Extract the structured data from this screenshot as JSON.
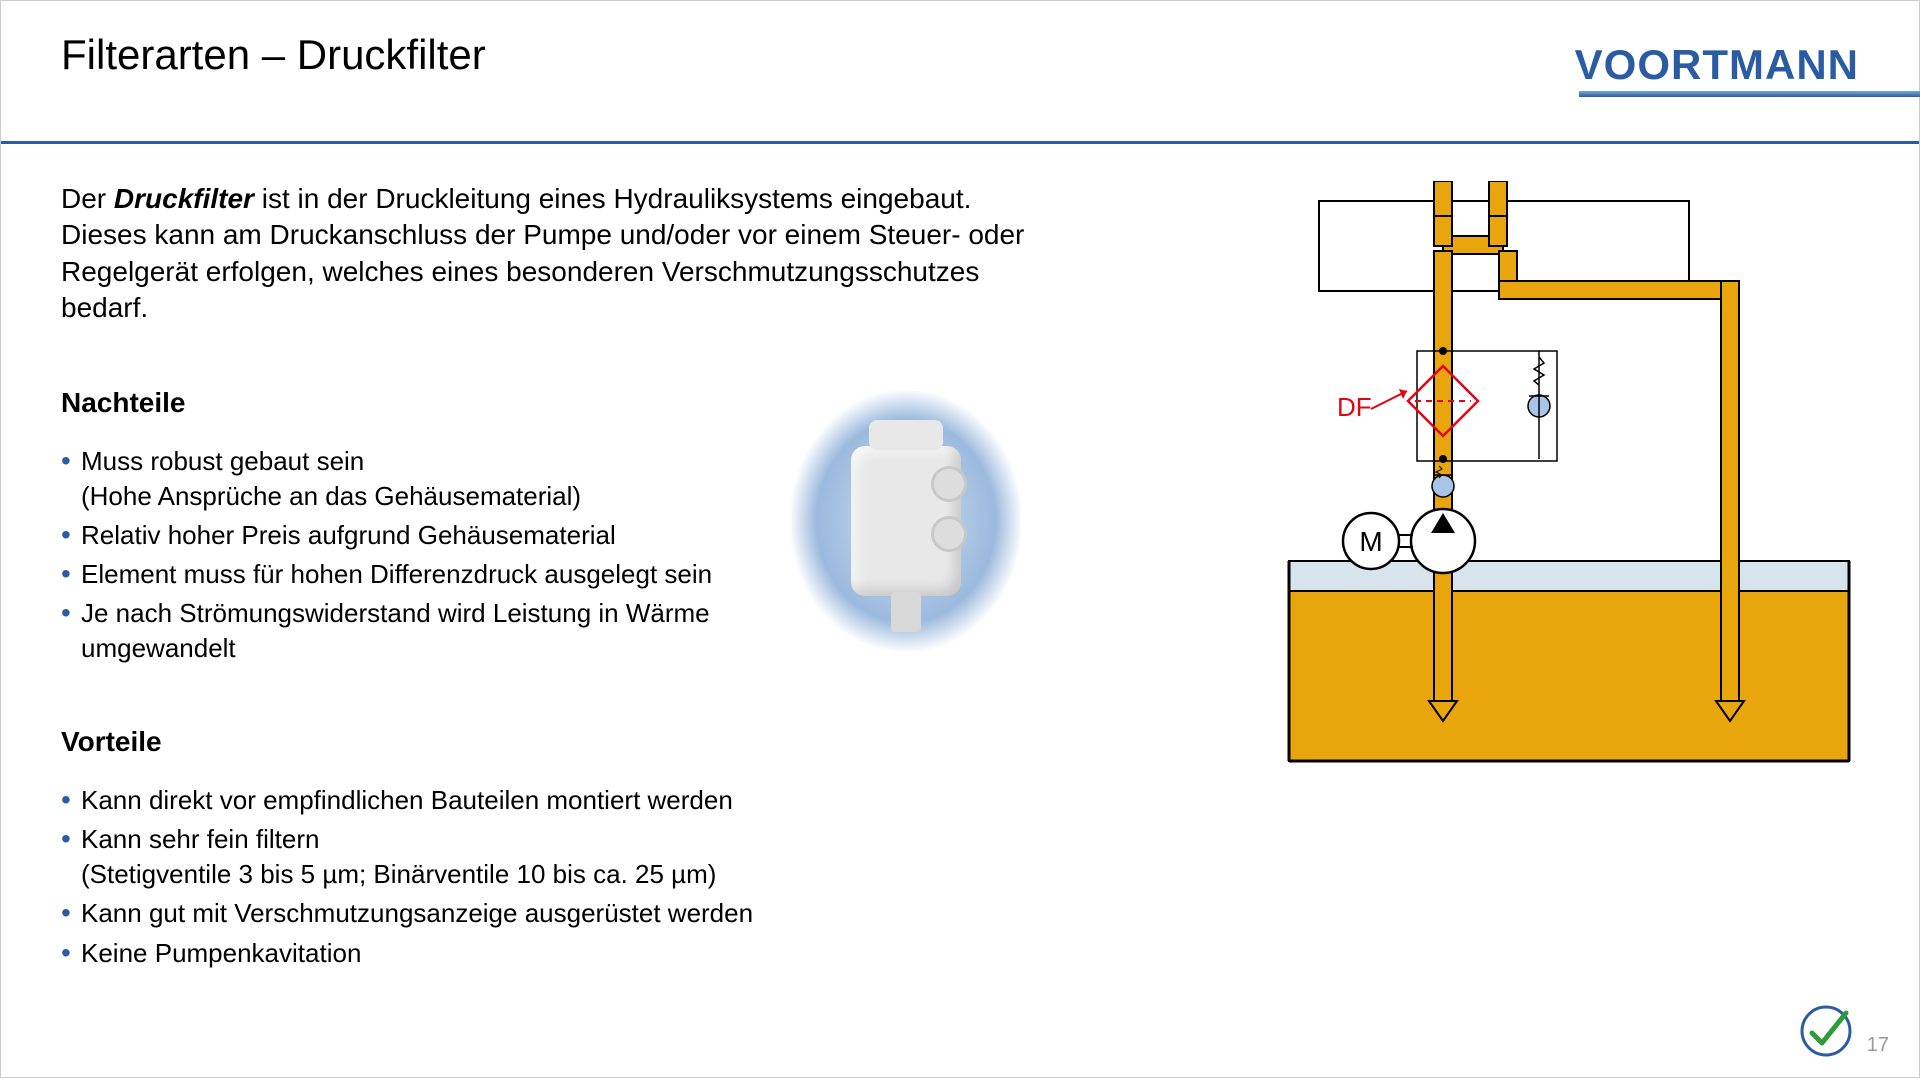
{
  "title": "Filterarten – Druckfilter",
  "logo": "VOORTMANN",
  "intro_prefix": "Der ",
  "intro_bold": "Druckfilter",
  "intro_rest": " ist in der Druckleitung eines Hydrauliksystems eingebaut. Dieses kann am Druckanschluss der Pumpe und/oder vor einem Steuer- oder Regelgerät erfolgen, welches eines besonderen Verschmutzungsschutzes bedarf.",
  "nachteile_heading": "Nachteile",
  "nachteile": [
    {
      "text": "Muss robust gebaut sein",
      "sub": "(Hohe Ansprüche an das Gehäusematerial)"
    },
    {
      "text": "Relativ hoher Preis aufgrund Gehäusematerial"
    },
    {
      "text": "Element muss für hohen Differenzdruck ausgelegt sein"
    },
    {
      "text": "Je nach Strömungswiderstand wird Leistung in Wärme umgewandelt"
    }
  ],
  "vorteile_heading": "Vorteile",
  "vorteile": [
    {
      "text": "Kann direkt vor empfindlichen Bauteilen montiert werden"
    },
    {
      "text": "Kann sehr fein filtern",
      "sub": "(Stetigventile 3 bis 5 µm; Binärventile 10 bis ca. 25 µm)"
    },
    {
      "text": "Kann gut mit Verschmutzungsanzeige ausgerüstet werden"
    },
    {
      "text": "Keine Pumpenkavitation"
    }
  ],
  "schematic": {
    "label_df": "DF",
    "label_m": "M",
    "colors": {
      "pipe_fill": "#e8a50c",
      "pipe_stroke": "#000000",
      "tank_fill": "#e8a50c",
      "tank_stroke": "#000000",
      "filter_stroke": "#e20613",
      "text_red": "#e20613",
      "valve_ball": "#a8c4e6",
      "bg_rect_stroke": "#000000"
    }
  },
  "page_number": "17",
  "accent_color": "#2b5ca3",
  "check_color": "#2e9b3a"
}
